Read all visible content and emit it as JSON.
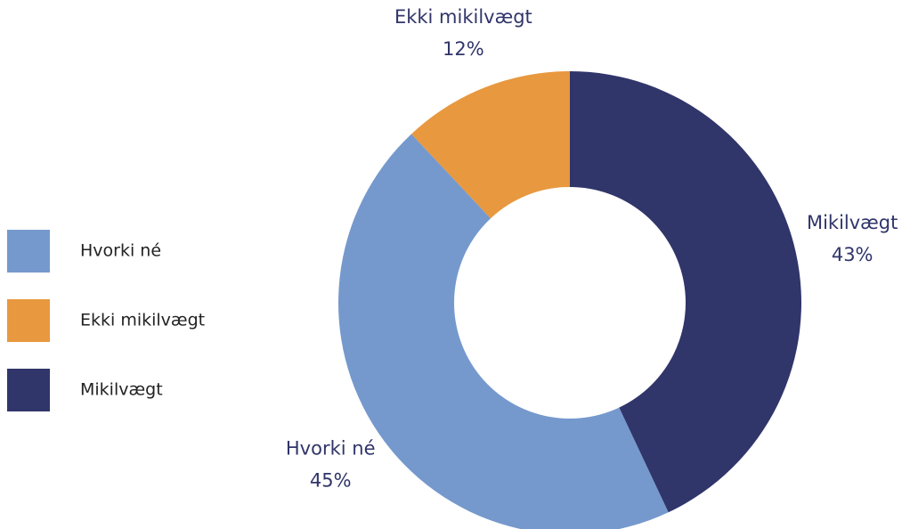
{
  "chart_data": {
    "type": "donut",
    "categories": [
      "Hvorki né",
      "Ekki mikilvægt",
      "Mikilvægt"
    ],
    "values": [
      45,
      12,
      43
    ],
    "value_labels": [
      "45%",
      "12%",
      "43%"
    ],
    "colors": [
      "#7599cd",
      "#e8983f",
      "#30356a"
    ],
    "legend": "left"
  }
}
